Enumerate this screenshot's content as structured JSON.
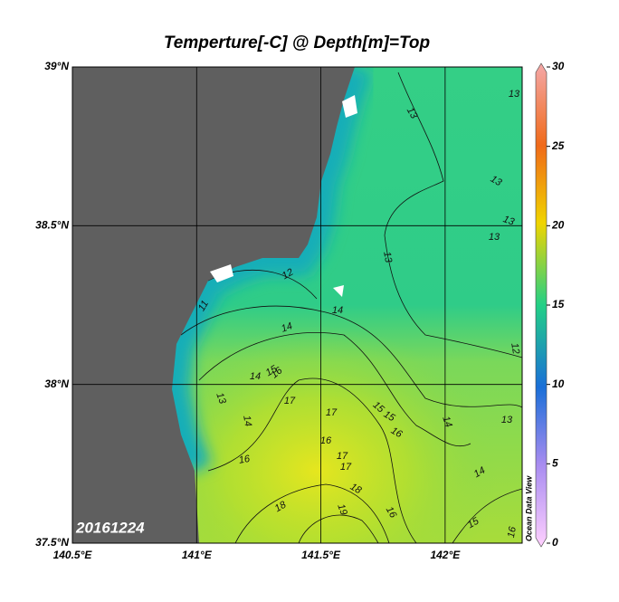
{
  "map": {
    "title": "Temperture[-C] @ Depth[m]=Top",
    "date": "20161224",
    "watermark": "Ocean Data View",
    "lon_lim": [
      140.5,
      142.31
    ],
    "lat_lim": [
      37.5,
      39
    ],
    "lon_ticks": [
      {
        "value": 140.5,
        "label": "140.5°E"
      },
      {
        "value": 141,
        "label": "141°E"
      },
      {
        "value": 141.5,
        "label": "141.5°E"
      },
      {
        "value": 142,
        "label": "142°E"
      }
    ],
    "lat_ticks": [
      {
        "value": 39,
        "label": "39°N"
      },
      {
        "value": 38.5,
        "label": "38.5°N"
      },
      {
        "value": 38,
        "label": "38°N"
      },
      {
        "value": 37.5,
        "label": "37.5°N"
      }
    ],
    "colorbar": {
      "lim": [
        0,
        30
      ],
      "ticks": [
        0,
        5,
        10,
        15,
        20,
        25,
        30
      ]
    },
    "contour_labels": [
      "13",
      "13",
      "13",
      "13",
      "13",
      "13",
      "12",
      "12",
      "11",
      "14",
      "14",
      "14",
      "15",
      "16",
      "13",
      "14",
      "17",
      "17",
      "15",
      "15",
      "16",
      "14",
      "13",
      "16",
      "16",
      "17",
      "17",
      "18",
      "18",
      "19",
      "16",
      "14",
      "15",
      "16"
    ]
  }
}
